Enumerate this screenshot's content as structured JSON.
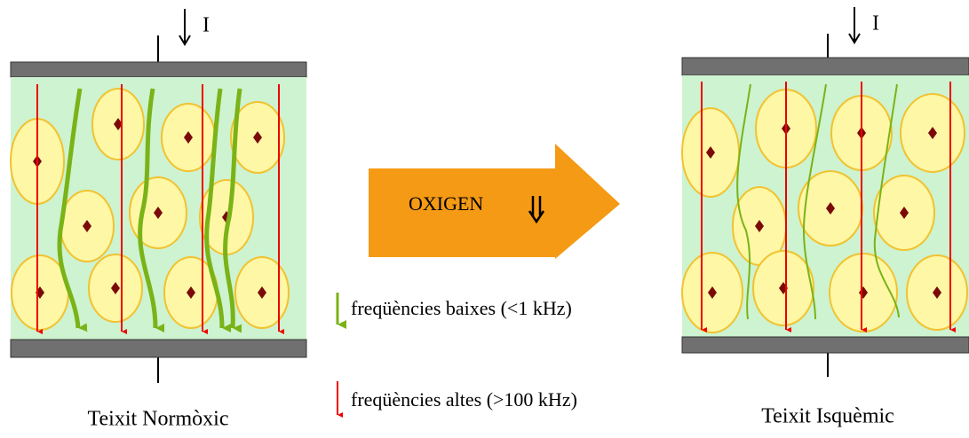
{
  "left_panel": {
    "current_label": "I",
    "caption": "Teixit Normòxic"
  },
  "right_panel": {
    "current_label": "I",
    "caption": "Teixit Isquèmic"
  },
  "center_arrow": {
    "label": "OXIGEN"
  },
  "legend": {
    "low_frequency": "freqüències baixes (<1 kHz)",
    "high_frequency": "freqüències altes (>100 kHz)"
  }
}
